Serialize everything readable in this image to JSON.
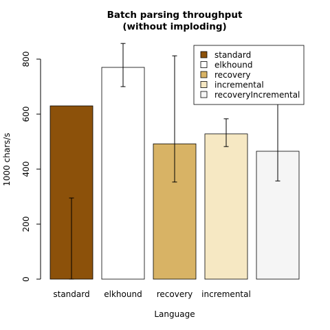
{
  "chart_data": {
    "type": "bar",
    "title": "Batch parsing throughput",
    "subtitle": "(without imploding)",
    "xlabel": "Language",
    "ylabel": "1000 chars/s",
    "ylim": [
      0,
      800
    ],
    "yticks": [
      "0",
      "200",
      "400",
      "600",
      "800"
    ],
    "categories": [
      "standard",
      "elkhound",
      "recovery",
      "incremental",
      "recoveryIncremental"
    ],
    "tick_labels": [
      "standard",
      "elkhound",
      "recovery",
      "incremental",
      ""
    ],
    "values": [
      630,
      770,
      492,
      528,
      465
    ],
    "error_low": [
      0,
      700,
      353,
      482,
      357
    ],
    "error_high": [
      295,
      857,
      812,
      583,
      678
    ],
    "colors": [
      "#8c510a",
      "#ffffff",
      "#d8b365",
      "#f6e8c3",
      "#f5f5f5"
    ],
    "legend": {
      "placement": "top-right",
      "entries": [
        "standard",
        "elkhound",
        "recovery",
        "incremental",
        "recoveryIncremental"
      ]
    },
    "grid": false
  }
}
